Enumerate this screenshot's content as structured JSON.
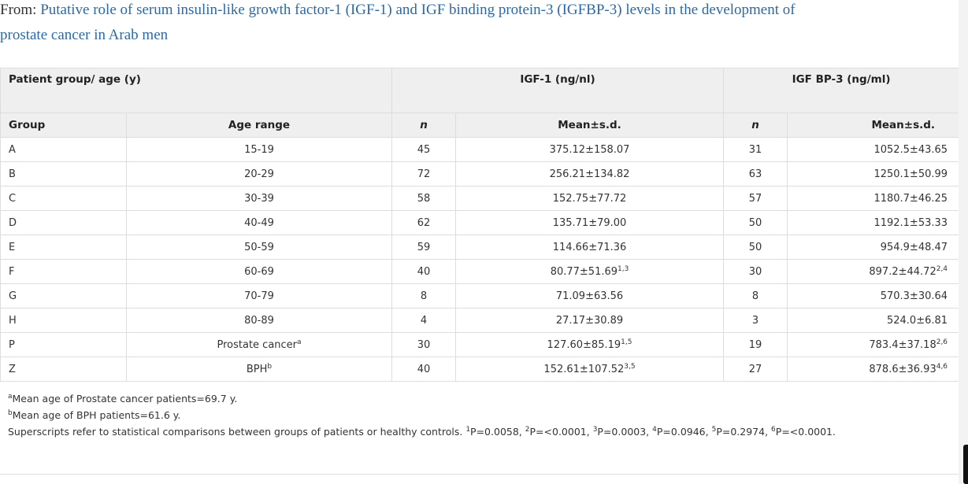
{
  "source": {
    "prefix": "From:",
    "title": "Putative role of serum insulin-like growth factor-1 (IGF-1) and IGF binding protein-3 (IGFBP-3) levels in the development of prostate cancer in Arab men"
  },
  "table": {
    "header1": {
      "patient_group": "Patient group/ age (y)",
      "igf1": "IGF-1 (ng/nl)",
      "igfbp3": "IGF BP-3 (ng/ml)"
    },
    "header2": {
      "group": "Group",
      "age_range": "Age range",
      "n1": "n",
      "mean1": "Mean±s.d.",
      "n2": "n",
      "mean2": "Mean±s.d."
    },
    "rows": [
      {
        "group": "A",
        "age": "15-19",
        "age_sup": "",
        "n1": "45",
        "igf": "375.12±158.07",
        "igf_sup": "",
        "n2": "31",
        "bp": "1052.5±43.65",
        "bp_sup": ""
      },
      {
        "group": "B",
        "age": "20-29",
        "age_sup": "",
        "n1": "72",
        "igf": "256.21±134.82",
        "igf_sup": "",
        "n2": "63",
        "bp": "1250.1±50.99",
        "bp_sup": ""
      },
      {
        "group": "C",
        "age": "30-39",
        "age_sup": "",
        "n1": "58",
        "igf": "152.75±77.72",
        "igf_sup": "",
        "n2": "57",
        "bp": "1180.7±46.25",
        "bp_sup": ""
      },
      {
        "group": "D",
        "age": "40-49",
        "age_sup": "",
        "n1": "62",
        "igf": "135.71±79.00",
        "igf_sup": "",
        "n2": "50",
        "bp": "1192.1±53.33",
        "bp_sup": ""
      },
      {
        "group": "E",
        "age": "50-59",
        "age_sup": "",
        "n1": "59",
        "igf": "114.66±71.36",
        "igf_sup": "",
        "n2": "50",
        "bp": "954.9±48.47",
        "bp_sup": ""
      },
      {
        "group": "F",
        "age": "60-69",
        "age_sup": "",
        "n1": "40",
        "igf": "80.77±51.69",
        "igf_sup": "1,3",
        "n2": "30",
        "bp": "897.2±44.72",
        "bp_sup": "2,4"
      },
      {
        "group": "G",
        "age": "70-79",
        "age_sup": "",
        "n1": "8",
        "igf": "71.09±63.56",
        "igf_sup": "",
        "n2": "8",
        "bp": "570.3±30.64",
        "bp_sup": ""
      },
      {
        "group": "H",
        "age": "80-89",
        "age_sup": "",
        "n1": "4",
        "igf": "27.17±30.89",
        "igf_sup": "",
        "n2": "3",
        "bp": "524.0±6.81",
        "bp_sup": ""
      },
      {
        "group": "P",
        "age": "Prostate cancer",
        "age_sup": "a",
        "n1": "30",
        "igf": "127.60±85.19",
        "igf_sup": "1,5",
        "n2": "19",
        "bp": "783.4±37.18",
        "bp_sup": "2,6"
      },
      {
        "group": "Z",
        "age": "BPH",
        "age_sup": "b",
        "n1": "40",
        "igf": "152.61±107.52",
        "igf_sup": "3,5",
        "n2": "27",
        "bp": "878.6±36.93",
        "bp_sup": "4,6"
      }
    ]
  },
  "footnotes": {
    "a_mark": "a",
    "a_text": "Mean age of Prostate cancer patients=69.7 y.",
    "b_mark": "b",
    "b_text": "Mean age of BPH patients=61.6 y.",
    "c_text": "Superscripts refer to statistical comparisons between groups of patients or healthy controls.",
    "pvalues": [
      {
        "mark": "1",
        "text": "P=0.0058,"
      },
      {
        "mark": "2",
        "text": "P=<0.0001,"
      },
      {
        "mark": "3",
        "text": "P=0.0003,"
      },
      {
        "mark": "4",
        "text": "P=0.0946,"
      },
      {
        "mark": "5",
        "text": "P=0.2974,"
      },
      {
        "mark": "6",
        "text": "P=<0.0001."
      }
    ]
  },
  "colors": {
    "link": "#2a6aa8",
    "header_bg": "#efefef",
    "border": "#dddddd"
  }
}
